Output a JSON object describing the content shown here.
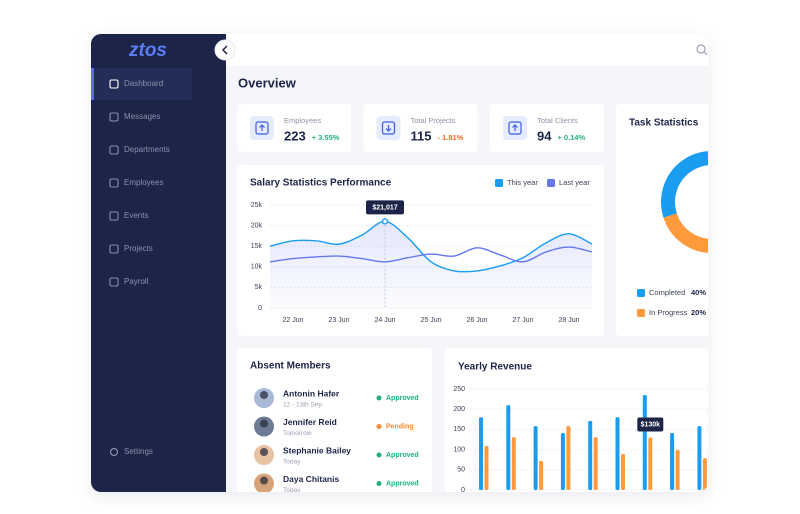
{
  "sidebar": {
    "logo": "ztos",
    "nav": [
      "Dashboard",
      "Messages",
      "Departments",
      "Employees",
      "Events",
      "Projects",
      "Payroll"
    ],
    "settings": "Settings"
  },
  "overview": {
    "title": "Overview"
  },
  "stats": [
    {
      "label": "Employees",
      "value": "223",
      "change": "+ 3.55%"
    },
    {
      "label": "Total Projects",
      "value": "115",
      "change": "- 1.81%"
    },
    {
      "label": "Total Clients",
      "value": "94",
      "change": "+ 0.14%"
    }
  ],
  "absent_members": {
    "title": "Absent Members",
    "rows": [
      {
        "name": "Antonin Hafer",
        "when": "12 - 13th Sep",
        "status": "Approved"
      },
      {
        "name": "Jennifer Reid",
        "when": "Tomorrow",
        "status": "Pending"
      },
      {
        "name": "Stephanie Bailey",
        "when": "Today",
        "status": "Approved"
      },
      {
        "name": "Daya Chitanis",
        "when": "Today",
        "status": "Approved"
      }
    ]
  },
  "chart_data": [
    {
      "type": "line",
      "title": "Salary Statistics Performance",
      "categories": [
        null,
        "22 Jun",
        null,
        "23 Jun",
        null,
        "24 Jun",
        null,
        "25 Jun",
        null,
        "26 Jun",
        null,
        "27 Jun",
        null,
        "28 Jun",
        null
      ],
      "series": [
        {
          "name": "This year",
          "color": "#1a9cf0",
          "values": [
            15000,
            16300,
            16300,
            15500,
            17700,
            21017,
            17000,
            11200,
            9000,
            9000,
            10200,
            12200,
            15800,
            18000,
            15500
          ],
          "value_labels": [
            null,
            null,
            null,
            null,
            null,
            "$21,017",
            null,
            null,
            null,
            null,
            null,
            null,
            null,
            null,
            null
          ]
        },
        {
          "name": "Last year",
          "color": "#6478ee",
          "values": [
            11200,
            12000,
            12400,
            12600,
            12000,
            11200,
            12200,
            13100,
            12600,
            14600,
            12900,
            11200,
            13600,
            14800,
            13600
          ]
        }
      ],
      "ylim": [
        0,
        25000
      ],
      "yticks": [
        0,
        {
          "value": 5000,
          "label": "5k"
        },
        {
          "value": 10000,
          "label": "10k"
        },
        {
          "value": 15000,
          "label": "15k"
        },
        {
          "value": 20000,
          "label": "20k"
        },
        {
          "value": 25000,
          "label": "25k"
        }
      ],
      "grid": true,
      "legend": "top-right"
    },
    {
      "type": "donut",
      "title": "Task Statistics",
      "categories": [
        "Completed",
        "In Progress"
      ],
      "values": [
        40,
        20
      ],
      "value_labels": [
        "40%",
        "20%"
      ],
      "colors": [
        "#1a9cf0",
        "#ff9a3c"
      ]
    },
    {
      "type": "bar",
      "title": "Yearly Revenue",
      "series": [
        {
          "color": "#1a9cf0",
          "values": [
            180,
            210,
            158,
            141,
            171,
            180,
            235,
            141,
            158
          ]
        },
        {
          "color": "#ff9a3c",
          "values": [
            109,
            131,
            72,
            158,
            131,
            89,
            130,
            99,
            79
          ],
          "value_labels": [
            null,
            null,
            null,
            null,
            null,
            null,
            "$130k",
            null,
            null
          ]
        }
      ],
      "ylim": [
        0,
        250
      ],
      "yticks": [
        0,
        50,
        100,
        150,
        200,
        250
      ],
      "grid": true
    }
  ]
}
